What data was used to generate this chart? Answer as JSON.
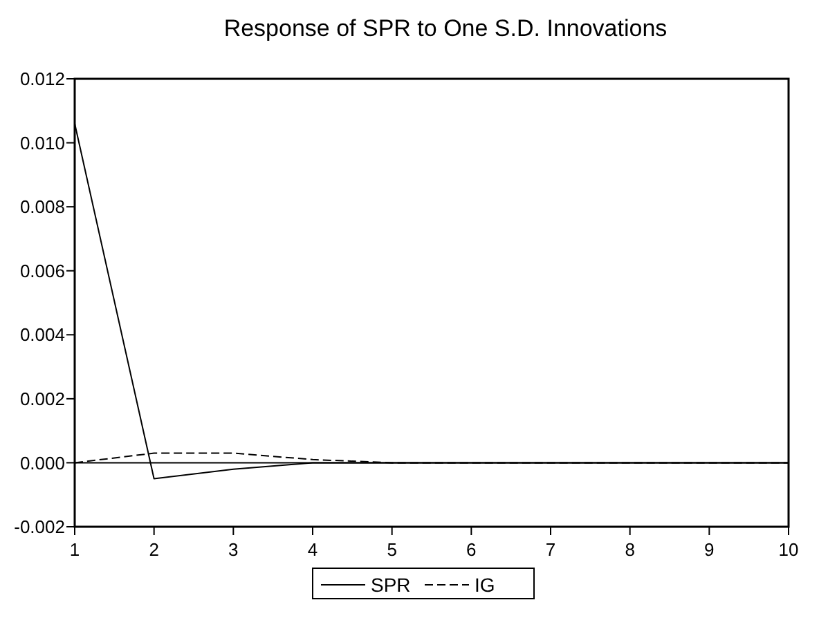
{
  "chart_data": {
    "type": "line",
    "title": "Response of SPR to One S.D. Innovations",
    "x": [
      1,
      2,
      3,
      4,
      5,
      6,
      7,
      8,
      9,
      10
    ],
    "series": [
      {
        "name": "SPR",
        "color": "#000000",
        "line_style": "solid",
        "values": [
          0.0106,
          -0.0005,
          -0.0002,
          0,
          0,
          0,
          0,
          0,
          0,
          0
        ]
      },
      {
        "name": "IG",
        "color": "#000000",
        "line_style": "dashed",
        "values": [
          0,
          0.0003,
          0.0003,
          0.0001,
          0,
          0,
          0,
          0,
          0,
          0
        ]
      }
    ],
    "xlim": [
      1,
      10
    ],
    "xticks": [
      1,
      2,
      3,
      4,
      5,
      6,
      7,
      8,
      9,
      10
    ],
    "ylim": [
      -0.002,
      0.012
    ],
    "yticks": [
      {
        "value": -0.002,
        "label": "-0.002"
      },
      {
        "value": 0,
        "label": "0.000"
      },
      {
        "value": 0.002,
        "label": "0.002"
      },
      {
        "value": 0.004,
        "label": "0.004"
      },
      {
        "value": 0.006,
        "label": "0.006"
      },
      {
        "value": 0.008,
        "label": "0.008"
      },
      {
        "value": 0.01,
        "label": "0.010"
      },
      {
        "value": 0.012,
        "label": "0.012"
      }
    ],
    "ref_lines": [
      {
        "axis": "y",
        "value": 0,
        "color": "#000000"
      }
    ],
    "grid": false,
    "legend": "bottom",
    "marker": "none"
  }
}
